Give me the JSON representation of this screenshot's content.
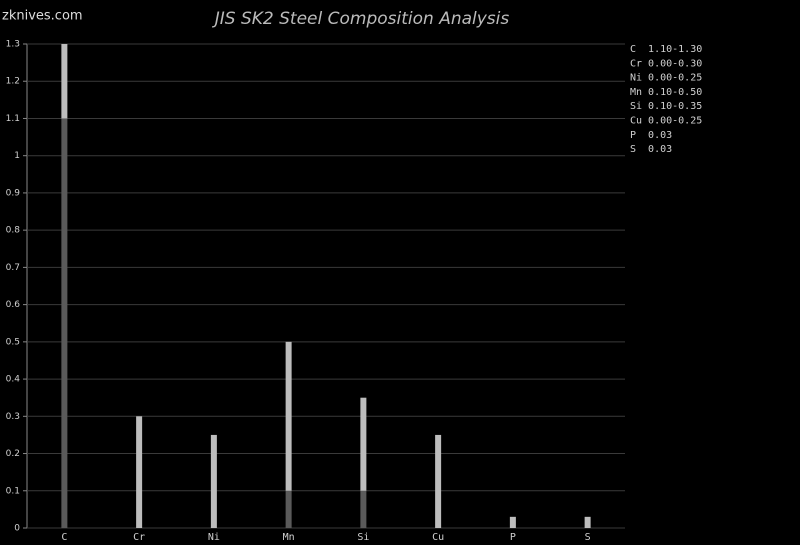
{
  "chart_data": {
    "type": "range-bar",
    "title": "JIS SK2 Steel Composition Analysis",
    "watermark": "zknives.com",
    "categories": [
      "C",
      "Cr",
      "Ni",
      "Mn",
      "Si",
      "Cu",
      "P",
      "S"
    ],
    "low": [
      1.1,
      0.0,
      0.0,
      0.1,
      0.1,
      0.0,
      null,
      null
    ],
    "high": [
      1.3,
      0.3,
      0.25,
      0.5,
      0.35,
      0.25,
      0.03,
      0.03
    ],
    "low_color": "#5a5a5a",
    "high_color": "#bdbdbd",
    "ylim": [
      0,
      1.3
    ],
    "yticks": [
      0,
      0.1,
      0.2,
      0.3,
      0.4,
      0.5,
      0.6,
      0.7,
      0.8,
      0.9,
      1,
      1.1,
      1.2,
      1.3
    ],
    "grid": true,
    "legend_items": [
      "C  1.10-1.30",
      "Cr 0.00-0.30",
      "Ni 0.00-0.25",
      "Mn 0.10-0.50",
      "Si 0.10-0.35",
      "Cu 0.00-0.25",
      "P  0.03",
      "S  0.03"
    ]
  }
}
